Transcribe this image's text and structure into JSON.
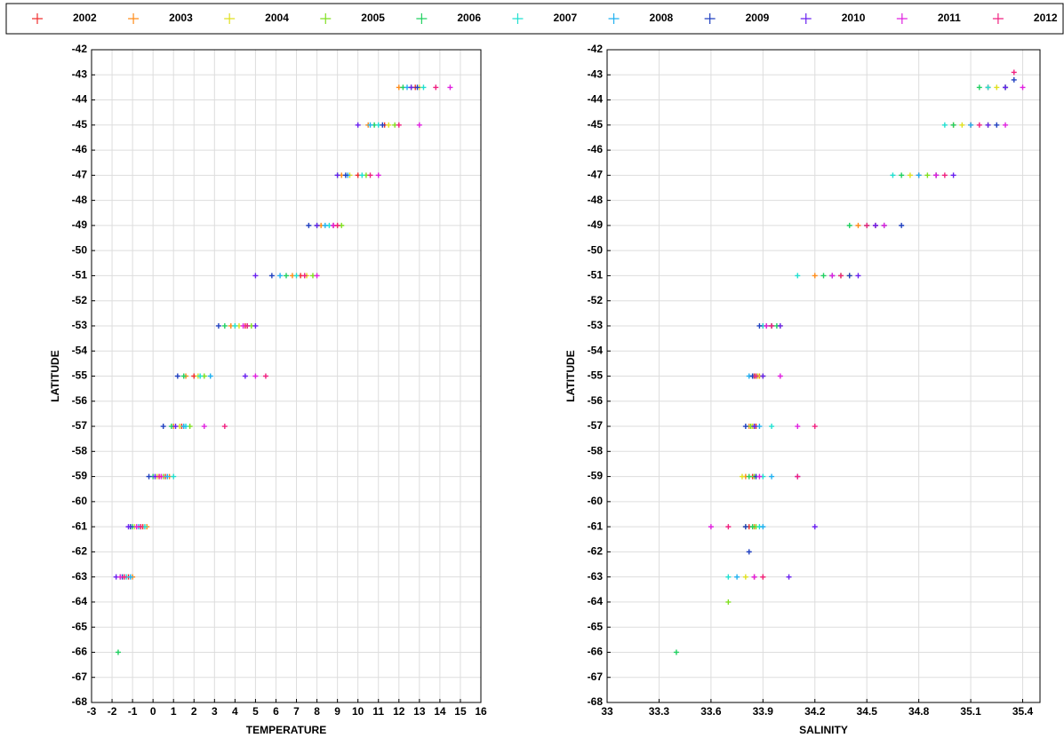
{
  "chart_data": [
    {
      "type": "scatter",
      "x_label": "TEMPERATURE",
      "y_label": "LATITUDE",
      "xlim": [
        -3,
        16
      ],
      "xticks": [
        -3,
        -2,
        -1,
        0,
        1,
        2,
        3,
        4,
        5,
        6,
        7,
        8,
        9,
        10,
        11,
        12,
        13,
        14,
        15,
        16
      ],
      "ylim": [
        -68,
        -42
      ],
      "yticks": [
        -68,
        -67,
        -66,
        -65,
        -64,
        -63,
        -62,
        -61,
        -60,
        -59,
        -58,
        -57,
        -56,
        -55,
        -54,
        -53,
        -52,
        -51,
        -50,
        -49,
        -48,
        -47,
        -46,
        -45,
        -44,
        -43,
        -42
      ],
      "grid": true,
      "series": [
        {
          "name": "2002",
          "color": "#f03030",
          "x": [
            -1.2,
            -0.5,
            0.6,
            1.4,
            2.0,
            4.5,
            7.2,
            8.8,
            10.0,
            11.3,
            12.8
          ],
          "values": [
            -63,
            -61,
            -59,
            -57,
            -55,
            -53,
            -51,
            -49,
            -47,
            -45,
            -43.5
          ]
        },
        {
          "name": "2003",
          "color": "#ff8c1a",
          "x": [
            -1.0,
            -0.3,
            0.8,
            1.0,
            1.6,
            3.8,
            6.8,
            8.2,
            9.2,
            10.5,
            12.0
          ],
          "values": [
            -63,
            -61,
            -59,
            -57,
            -55,
            -53,
            -51,
            -49,
            -47,
            -45,
            -43.5
          ]
        },
        {
          "name": "2004",
          "color": "#e0e020",
          "x": [
            -1.4,
            -0.9,
            0.2,
            1.3,
            2.2,
            4.2,
            7.5,
            9.0,
            9.6,
            11.5,
            13.0
          ],
          "values": [
            -63,
            -61,
            -59,
            -57,
            -55,
            -53,
            -51,
            -49,
            -47,
            -45,
            -43.5
          ]
        },
        {
          "name": "2005",
          "color": "#80e020",
          "x": [
            -1.6,
            -0.6,
            0.5,
            1.8,
            2.5,
            4.8,
            7.8,
            9.2,
            10.4,
            11.8,
            12.6
          ],
          "values": [
            -63,
            -61,
            -59,
            -57,
            -55,
            -53,
            -51,
            -49,
            -47,
            -45,
            -43.5
          ]
        },
        {
          "name": "2006",
          "color": "#20d060",
          "x": [
            -1.7,
            -1.0,
            0.0,
            0.9,
            1.5,
            3.5,
            6.5,
            8.0,
            9.0,
            10.8,
            12.2
          ],
          "values": [
            -66,
            -61,
            -59,
            -57,
            -55,
            -53,
            -51,
            -49,
            -47,
            -45,
            -43.5
          ]
        },
        {
          "name": "2007",
          "color": "#20e0d0",
          "x": [
            -1.3,
            -0.4,
            1.0,
            1.6,
            2.3,
            4.0,
            7.0,
            8.6,
            10.2,
            11.0,
            13.2
          ],
          "values": [
            -63,
            -61,
            -59,
            -57,
            -55,
            -53,
            -51,
            -49,
            -47,
            -45,
            -43.5
          ]
        },
        {
          "name": "2008",
          "color": "#20b0f0",
          "x": [
            -1.1,
            -0.7,
            0.7,
            1.5,
            2.8,
            4.6,
            6.2,
            8.4,
            9.5,
            10.6,
            12.4
          ],
          "values": [
            -63,
            -61,
            -59,
            -57,
            -55,
            -53,
            -51,
            -49,
            -47,
            -45,
            -43.5
          ]
        },
        {
          "name": "2009",
          "color": "#2040c0",
          "x": [
            -1.5,
            -1.1,
            -0.2,
            0.5,
            1.2,
            3.2,
            5.8,
            7.6,
            9.4,
            11.2,
            12.9
          ],
          "values": [
            -63,
            -61,
            -59,
            -57,
            -55,
            -53,
            -51,
            -49,
            -47,
            -45,
            -43.5
          ]
        },
        {
          "name": "2010",
          "color": "#6a20f0",
          "x": [
            -1.8,
            -1.2,
            0.1,
            1.1,
            4.5,
            5.0,
            5.0,
            8.0,
            9.0,
            10.0,
            12.6
          ],
          "values": [
            -63,
            -61,
            -59,
            -57,
            -55,
            -53,
            -51,
            -49,
            -47,
            -45,
            -43.5
          ]
        },
        {
          "name": "2011",
          "color": "#e020e0",
          "x": [
            -1.6,
            -0.8,
            0.4,
            2.5,
            5.0,
            4.4,
            8.0,
            8.8,
            11.0,
            13.0,
            14.5
          ],
          "values": [
            -63,
            -61,
            -59,
            -57,
            -55,
            -53,
            -51,
            -49,
            -47,
            -45,
            -43.5
          ]
        },
        {
          "name": "2012",
          "color": "#f02080",
          "x": [
            -1.4,
            -0.6,
            0.3,
            3.5,
            5.5,
            4.6,
            7.4,
            9.0,
            10.6,
            12.0,
            13.8
          ],
          "values": [
            -63,
            -61,
            -59,
            -57,
            -55,
            -53,
            -51,
            -49,
            -47,
            -45,
            -43.5
          ]
        }
      ]
    },
    {
      "type": "scatter",
      "x_label": "SALINITY",
      "y_label": "LATITUDE",
      "xlim": [
        33,
        35.5
      ],
      "xticks": [
        33,
        33.3,
        33.6,
        33.9,
        34.2,
        34.5,
        34.8,
        35.1,
        35.4
      ],
      "ylim": [
        -68,
        -42
      ],
      "yticks": [
        -68,
        -67,
        -66,
        -65,
        -64,
        -63,
        -62,
        -61,
        -60,
        -59,
        -58,
        -57,
        -56,
        -55,
        -54,
        -53,
        -52,
        -51,
        -50,
        -49,
        -48,
        -47,
        -46,
        -45,
        -44,
        -43,
        -42
      ],
      "grid": true,
      "series": [
        {
          "name": "2002",
          "color": "#f03030",
          "x": [
            33.85,
            33.82,
            33.84,
            33.86,
            33.85,
            33.9,
            34.3,
            34.55,
            34.8,
            35.1,
            35.2
          ],
          "values": [
            -63,
            -61,
            -59,
            -57,
            -55,
            -53,
            -51,
            -49,
            -47,
            -45,
            -43.5
          ]
        },
        {
          "name": "2003",
          "color": "#ff8c1a",
          "x": [
            33.9,
            33.85,
            33.8,
            33.82,
            33.88,
            33.95,
            34.2,
            34.45,
            34.9,
            35.0,
            35.3
          ],
          "values": [
            -63,
            -61,
            -59,
            -57,
            -55,
            -53,
            -51,
            -49,
            -47,
            -45,
            -43.5
          ]
        },
        {
          "name": "2004",
          "color": "#e0e020",
          "x": [
            33.8,
            33.8,
            33.78,
            33.84,
            33.87,
            34.0,
            34.4,
            34.6,
            34.75,
            35.05,
            35.25
          ],
          "values": [
            -63,
            -61,
            -59,
            -57,
            -55,
            -53,
            -51,
            -49,
            -47,
            -45,
            -43.5
          ]
        },
        {
          "name": "2005",
          "color": "#80e020",
          "x": [
            33.7,
            33.86,
            33.85,
            33.83,
            33.9,
            33.92,
            34.35,
            34.5,
            34.85,
            35.2,
            35.3
          ],
          "values": [
            -64,
            -61,
            -59,
            -57,
            -55,
            -53,
            -51,
            -49,
            -47,
            -45,
            -43.5
          ]
        },
        {
          "name": "2006",
          "color": "#20d060",
          "x": [
            33.4,
            33.84,
            33.82,
            33.85,
            33.86,
            33.98,
            34.25,
            34.4,
            34.7,
            35.0,
            35.15
          ],
          "values": [
            -66,
            -61,
            -59,
            -57,
            -55,
            -53,
            -51,
            -49,
            -47,
            -45,
            -43.5
          ]
        },
        {
          "name": "2007",
          "color": "#20e0d0",
          "x": [
            33.7,
            33.88,
            33.9,
            33.95,
            33.84,
            33.9,
            34.1,
            34.5,
            34.65,
            34.95,
            35.2
          ],
          "values": [
            -63,
            -61,
            -59,
            -57,
            -55,
            -53,
            -51,
            -49,
            -47,
            -45,
            -43.5
          ]
        },
        {
          "name": "2008",
          "color": "#20b0f0",
          "x": [
            33.75,
            33.9,
            33.95,
            33.88,
            33.82,
            33.95,
            34.3,
            34.6,
            34.8,
            35.1,
            35.3
          ],
          "values": [
            -63,
            -61,
            -59,
            -57,
            -55,
            -53,
            -51,
            -49,
            -47,
            -45,
            -43.5
          ]
        },
        {
          "name": "2009",
          "color": "#2040c0",
          "x": [
            33.82,
            33.8,
            33.86,
            33.8,
            33.84,
            33.88,
            34.4,
            34.7,
            34.9,
            35.25,
            35.35
          ],
          "values": [
            -62,
            -61,
            -59,
            -57,
            -55,
            -53,
            -51,
            -49,
            -47,
            -45,
            -43.2
          ]
        },
        {
          "name": "2010",
          "color": "#6a20f0",
          "x": [
            34.05,
            34.2,
            34.1,
            33.85,
            33.9,
            34.0,
            34.45,
            34.55,
            35.0,
            35.2,
            35.3
          ],
          "values": [
            -63,
            -61,
            -59,
            -57,
            -55,
            -53,
            -51,
            -49,
            -47,
            -45,
            -43.5
          ]
        },
        {
          "name": "2011",
          "color": "#e020e0",
          "x": [
            33.85,
            33.6,
            33.88,
            34.1,
            34.0,
            33.92,
            34.3,
            34.6,
            34.9,
            35.3,
            35.4
          ],
          "values": [
            -63,
            -61,
            -59,
            -57,
            -55,
            -53,
            -51,
            -49,
            -47,
            -45,
            -43.5
          ]
        },
        {
          "name": "2012",
          "color": "#f02080",
          "x": [
            33.9,
            33.7,
            34.1,
            34.2,
            33.86,
            33.95,
            34.35,
            34.5,
            34.95,
            35.15,
            35.35
          ],
          "values": [
            -63,
            -61,
            -59,
            -57,
            -55,
            -53,
            -51,
            -49,
            -47,
            -45,
            -42.9
          ]
        }
      ]
    }
  ]
}
